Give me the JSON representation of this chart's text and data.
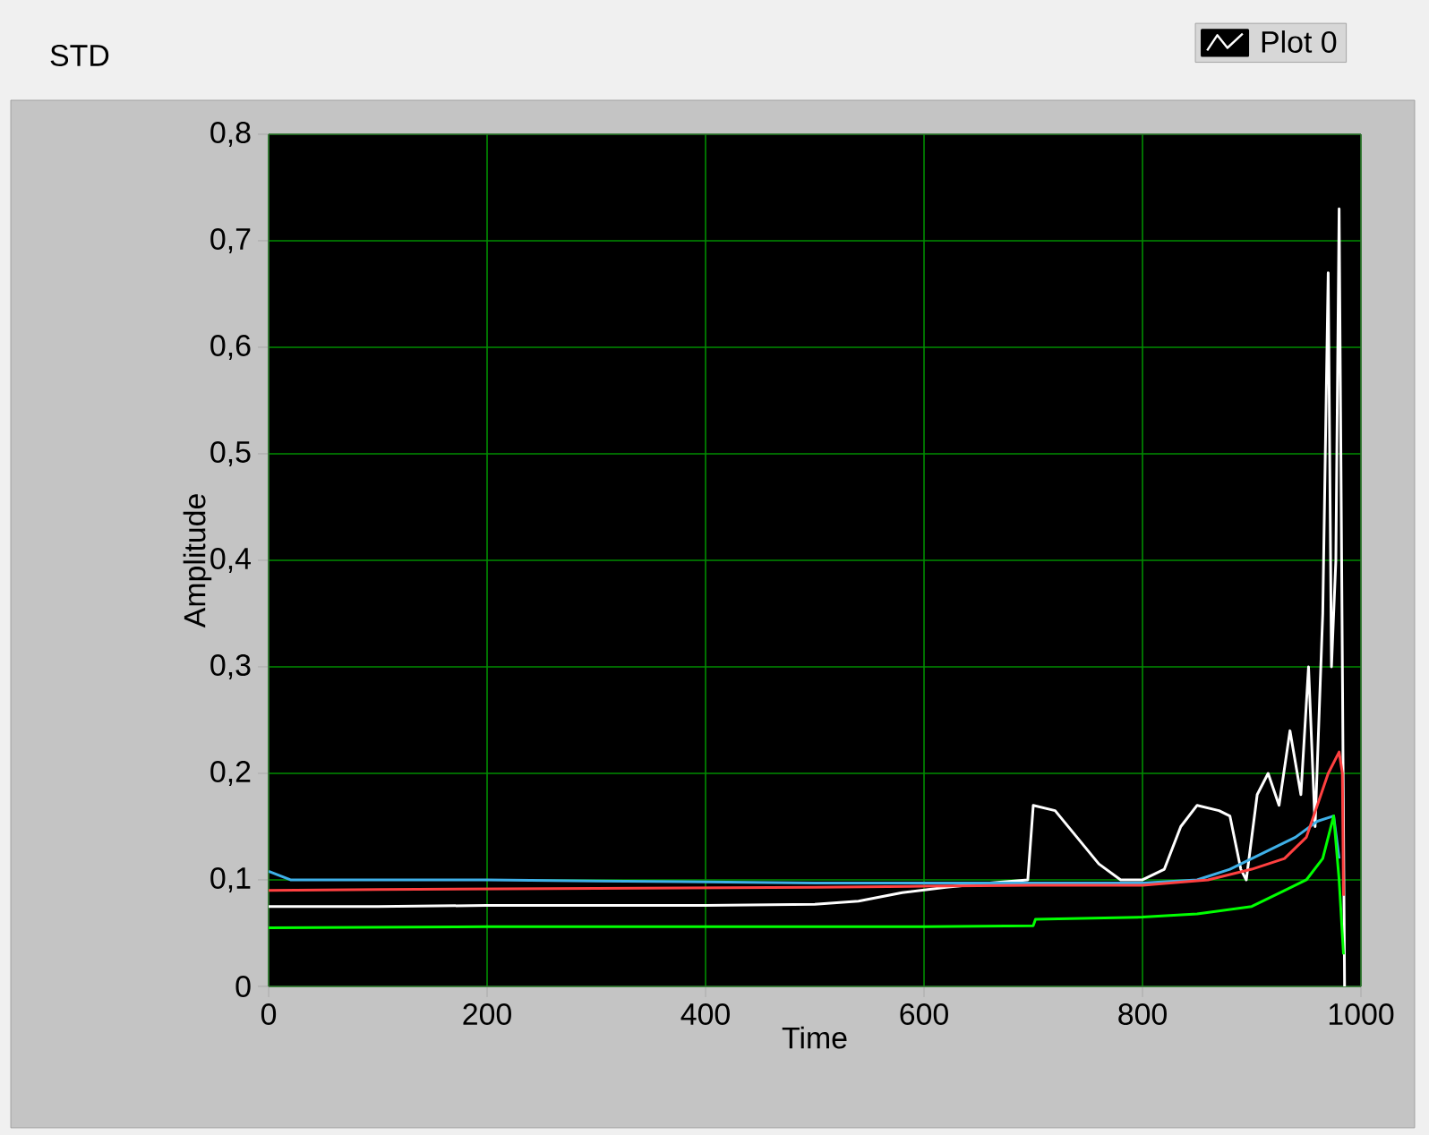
{
  "chart_data": {
    "type": "line",
    "title": "STD",
    "xlabel": "Time",
    "ylabel": "Amplitude",
    "xlim": [
      0,
      1000
    ],
    "ylim": [
      0,
      0.8
    ],
    "xticks": [
      0,
      200,
      400,
      600,
      800,
      1000
    ],
    "yticks": [
      0,
      {
        "value": 0.1,
        "label": "0,1"
      },
      {
        "value": 0.2,
        "label": "0,2"
      },
      {
        "value": 0.3,
        "label": "0,3"
      },
      {
        "value": 0.4,
        "label": "0,4"
      },
      {
        "value": 0.5,
        "label": "0,5"
      },
      {
        "value": 0.6,
        "label": "0,6"
      },
      {
        "value": 0.7,
        "label": "0,7"
      },
      {
        "value": 0.8,
        "label": "0,8"
      }
    ],
    "grid": true,
    "legend": "top right",
    "marker": "none",
    "line_style": "solid",
    "series": [
      {
        "name": "Plot 0",
        "color": "#ffffff",
        "x": [
          0,
          100,
          200,
          300,
          400,
          500,
          540,
          580,
          620,
          660,
          695,
          700,
          720,
          740,
          760,
          780,
          800,
          820,
          835,
          850,
          870,
          880,
          890,
          895,
          905,
          915,
          925,
          935,
          945,
          952,
          958,
          965,
          970,
          973,
          977,
          980,
          983,
          985
        ],
        "values": [
          0.075,
          0.075,
          0.076,
          0.076,
          0.076,
          0.077,
          0.08,
          0.088,
          0.093,
          0.097,
          0.1,
          0.17,
          0.165,
          0.14,
          0.115,
          0.1,
          0.1,
          0.11,
          0.15,
          0.17,
          0.165,
          0.16,
          0.11,
          0.1,
          0.18,
          0.2,
          0.17,
          0.24,
          0.18,
          0.3,
          0.15,
          0.35,
          0.67,
          0.3,
          0.4,
          0.73,
          0.3,
          0
        ]
      },
      {
        "color": "#3fb0e8",
        "x": [
          0,
          20,
          100,
          200,
          300,
          400,
          500,
          600,
          700,
          800,
          850,
          880,
          910,
          940,
          960,
          975,
          980
        ],
        "values": [
          0.108,
          0.1,
          0.1,
          0.1,
          0.099,
          0.098,
          0.097,
          0.097,
          0.097,
          0.097,
          0.1,
          0.11,
          0.125,
          0.14,
          0.155,
          0.16,
          0.12
        ]
      },
      {
        "color": "#ff4040",
        "x": [
          0,
          100,
          300,
          500,
          600,
          700,
          800,
          860,
          900,
          930,
          950,
          960,
          970,
          980,
          983,
          984
        ],
        "values": [
          0.09,
          0.091,
          0.092,
          0.093,
          0.094,
          0.095,
          0.095,
          0.1,
          0.11,
          0.12,
          0.14,
          0.17,
          0.2,
          0.22,
          0.2,
          0.085
        ]
      },
      {
        "color": "#00ff00",
        "x": [
          0,
          200,
          400,
          600,
          700,
          702,
          800,
          850,
          900,
          930,
          950,
          965,
          975,
          980,
          984
        ],
        "values": [
          0.055,
          0.056,
          0.056,
          0.056,
          0.057,
          0.063,
          0.065,
          0.068,
          0.075,
          0.09,
          0.1,
          0.12,
          0.16,
          0.1,
          0.03
        ]
      }
    ]
  }
}
